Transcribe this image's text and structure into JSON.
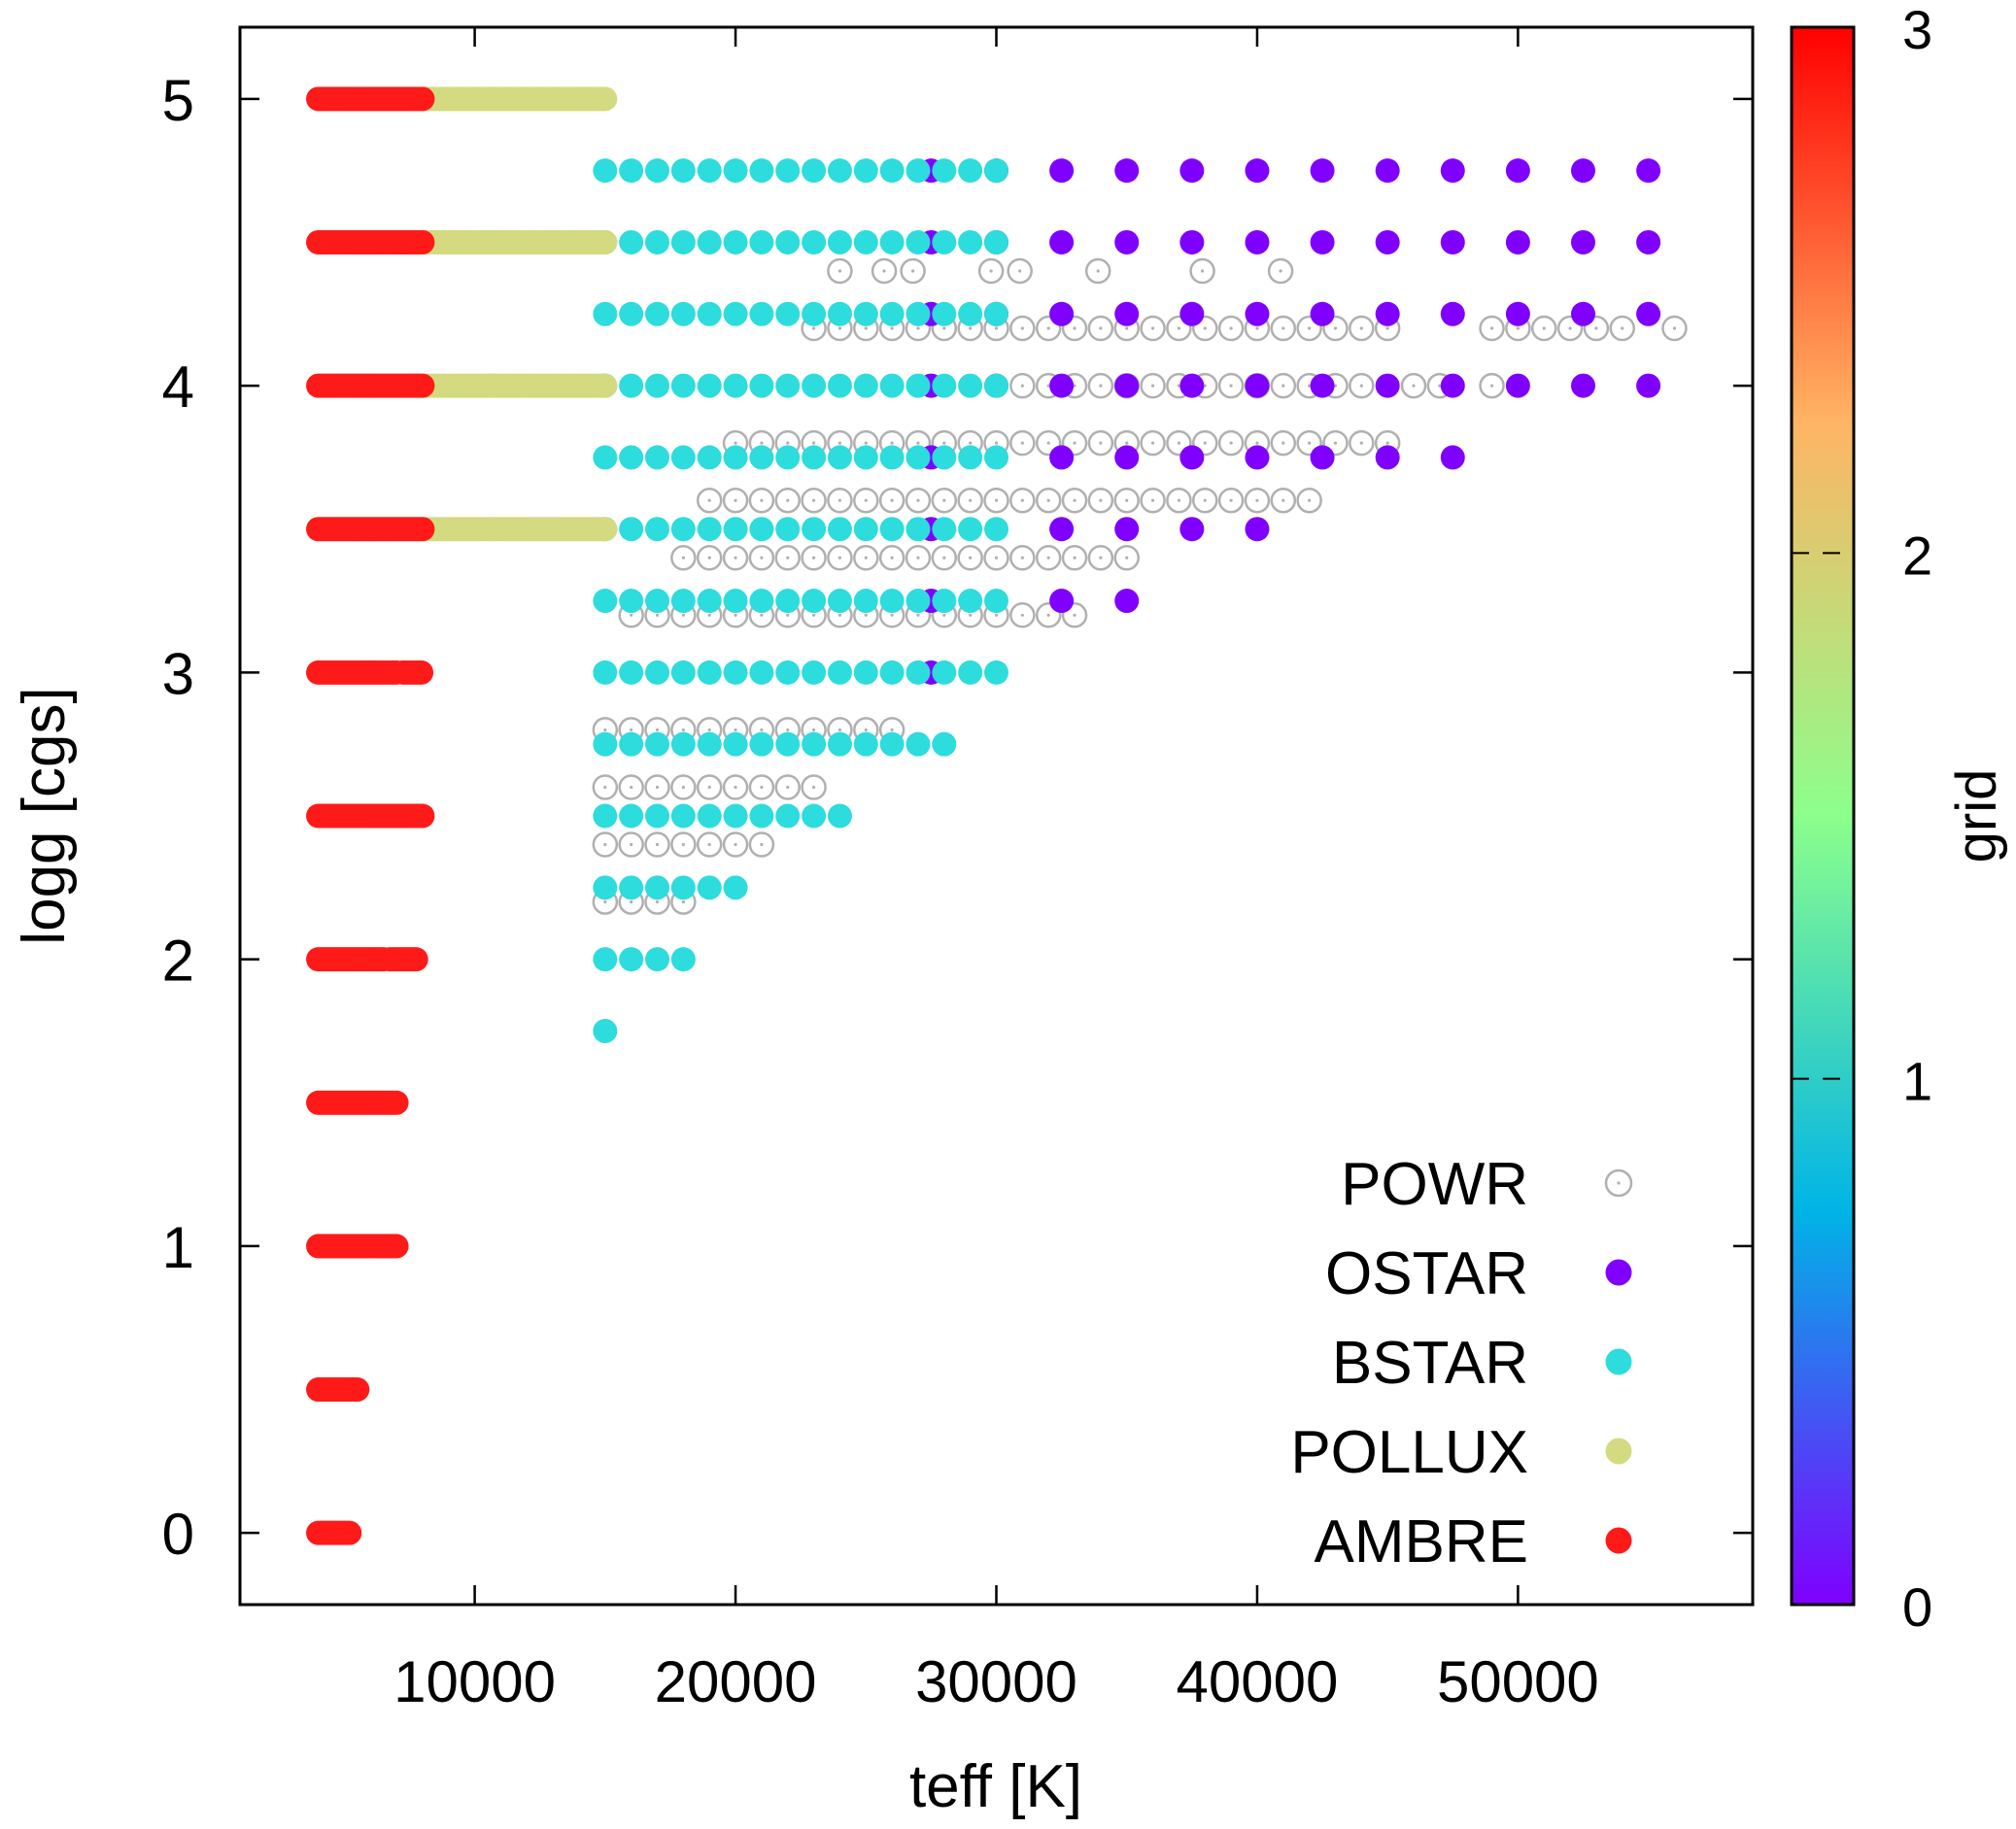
{
  "chart_data": {
    "type": "scatter",
    "title": "",
    "xlabel": "teff [K]",
    "ylabel": "logg [cgs]",
    "xlim": [
      1000,
      59000
    ],
    "ylim": [
      -0.25,
      5.25
    ],
    "xticks": [
      10000,
      20000,
      30000,
      40000,
      50000
    ],
    "yticks": [
      0,
      1,
      2,
      3,
      4,
      5
    ],
    "grid": false,
    "legend_position": "bottom-right",
    "colorbar": {
      "label": "grid",
      "range": [
        0,
        3
      ],
      "ticks": [
        0,
        1,
        2,
        3
      ],
      "colormap": "rainbow",
      "colors": [
        "#7f00ff",
        "#00b4e6",
        "#8cff8c",
        "#ffb464",
        "#ff0000"
      ]
    },
    "series": [
      {
        "name": "POWR",
        "color": "#b0b0b0",
        "marker": "open-circle-dot",
        "rows": [
          {
            "y": 4.4,
            "x": [
              24000,
              25700,
              26800,
              29800,
              30900,
              33900,
              37900,
              40900
            ]
          },
          {
            "y": 4.2,
            "x": [
              [
                23000,
                45000,
                1000
              ],
              49000,
              50000,
              51000,
              52000,
              53000,
              54000,
              56000
            ]
          },
          {
            "y": 4.0,
            "x": [
              [
                31000,
                44000,
                1000
              ],
              46000,
              47000,
              49000
            ]
          },
          {
            "y": 3.8,
            "x": [
              [
                20000,
                45000,
                1000
              ]
            ]
          },
          {
            "y": 3.6,
            "x": [
              [
                19000,
                42000,
                1000
              ]
            ]
          },
          {
            "y": 3.4,
            "x": [
              [
                18000,
                35000,
                1000
              ]
            ]
          },
          {
            "y": 3.2,
            "x": [
              [
                16000,
                33000,
                1000
              ]
            ]
          },
          {
            "y": 2.8,
            "x": [
              [
                15000,
                26000,
                1000
              ]
            ]
          },
          {
            "y": 2.6,
            "x": [
              [
                15000,
                23000,
                1000
              ]
            ]
          },
          {
            "y": 2.4,
            "x": [
              [
                15000,
                21000,
                1000
              ]
            ]
          },
          {
            "y": 2.2,
            "x": [
              [
                15000,
                18000,
                1000
              ]
            ]
          }
        ]
      },
      {
        "name": "OSTAR",
        "color": "#7f00ff",
        "marker": "filled-circle",
        "rows": [
          {
            "y": 4.75,
            "x": [
              [
                27500,
                55000,
                2500
              ]
            ]
          },
          {
            "y": 4.5,
            "x": [
              [
                27500,
                55000,
                2500
              ]
            ]
          },
          {
            "y": 4.25,
            "x": [
              [
                27500,
                55000,
                2500
              ]
            ]
          },
          {
            "y": 4.0,
            "x": [
              [
                27500,
                55000,
                2500
              ]
            ]
          },
          {
            "y": 3.75,
            "x": [
              27500,
              [
                32500,
                47500,
                2500
              ]
            ]
          },
          {
            "y": 3.5,
            "x": [
              27500,
              [
                32500,
                40000,
                2500
              ]
            ]
          },
          {
            "y": 3.25,
            "x": [
              27500,
              32500,
              35000
            ]
          },
          {
            "y": 3.0,
            "x": [
              27500
            ]
          }
        ]
      },
      {
        "name": "BSTAR",
        "color": "#2ddcdc",
        "marker": "filled-circle",
        "rows": [
          {
            "y": 4.75,
            "x": [
              [
                15000,
                30000,
                1000
              ]
            ]
          },
          {
            "y": 4.5,
            "x": [
              [
                15000,
                30000,
                1000
              ]
            ]
          },
          {
            "y": 4.25,
            "x": [
              [
                15000,
                30000,
                1000
              ]
            ]
          },
          {
            "y": 4.0,
            "x": [
              [
                15000,
                30000,
                1000
              ]
            ]
          },
          {
            "y": 3.75,
            "x": [
              [
                15000,
                30000,
                1000
              ]
            ]
          },
          {
            "y": 3.5,
            "x": [
              [
                15000,
                30000,
                1000
              ]
            ]
          },
          {
            "y": 3.25,
            "x": [
              [
                15000,
                30000,
                1000
              ]
            ]
          },
          {
            "y": 3.0,
            "x": [
              [
                15000,
                30000,
                1000
              ]
            ]
          },
          {
            "y": 2.75,
            "x": [
              [
                15000,
                28000,
                1000
              ]
            ]
          },
          {
            "y": 2.5,
            "x": [
              [
                15000,
                24000,
                1000
              ]
            ]
          },
          {
            "y": 2.25,
            "x": [
              [
                15000,
                20000,
                1000
              ]
            ]
          },
          {
            "y": 2.0,
            "x": [
              [
                15000,
                18000,
                1000
              ]
            ]
          },
          {
            "y": 1.75,
            "x": [
              15000
            ]
          }
        ]
      },
      {
        "name": "POLLUX",
        "color": "#d4da80",
        "marker": "filled-circle",
        "rows": [
          {
            "y": 5.0,
            "x": [
              [
                8000,
                15000,
                100
              ]
            ]
          },
          {
            "y": 4.5,
            "x": [
              [
                8000,
                15000,
                100
              ]
            ]
          },
          {
            "y": 4.0,
            "x": [
              [
                8000,
                15000,
                100
              ]
            ]
          },
          {
            "y": 3.5,
            "x": [
              [
                8000,
                15000,
                100
              ]
            ]
          }
        ]
      },
      {
        "name": "AMBRE",
        "color": "#ff1a1a",
        "marker": "filled-circle",
        "rows": [
          {
            "y": 5.0,
            "x": [
              [
                4000,
                8000,
                100
              ]
            ]
          },
          {
            "y": 4.5,
            "x": [
              [
                4000,
                8000,
                100
              ]
            ]
          },
          {
            "y": 4.0,
            "x": [
              [
                4000,
                8000,
                100
              ]
            ]
          },
          {
            "y": 3.5,
            "x": [
              [
                4000,
                8000,
                100
              ]
            ]
          },
          {
            "y": 3.0,
            "x": [
              [
                4000,
                7000,
                100
              ],
              [
                7250,
                8000,
                100
              ]
            ]
          },
          {
            "y": 2.5,
            "x": [
              [
                4000,
                8000,
                100
              ]
            ]
          },
          {
            "y": 2.0,
            "x": [
              [
                4000,
                6500,
                100
              ],
              [
                6750,
                7750,
                100
              ]
            ]
          },
          {
            "y": 1.5,
            "x": [
              [
                4000,
                7000,
                100
              ]
            ]
          },
          {
            "y": 1.0,
            "x": [
              [
                4000,
                7000,
                100
              ]
            ]
          },
          {
            "y": 0.5,
            "x": [
              [
                4000,
                5500,
                100
              ]
            ]
          },
          {
            "y": 0.0,
            "x": [
              [
                4000,
                5200,
                100
              ]
            ]
          }
        ]
      }
    ]
  }
}
